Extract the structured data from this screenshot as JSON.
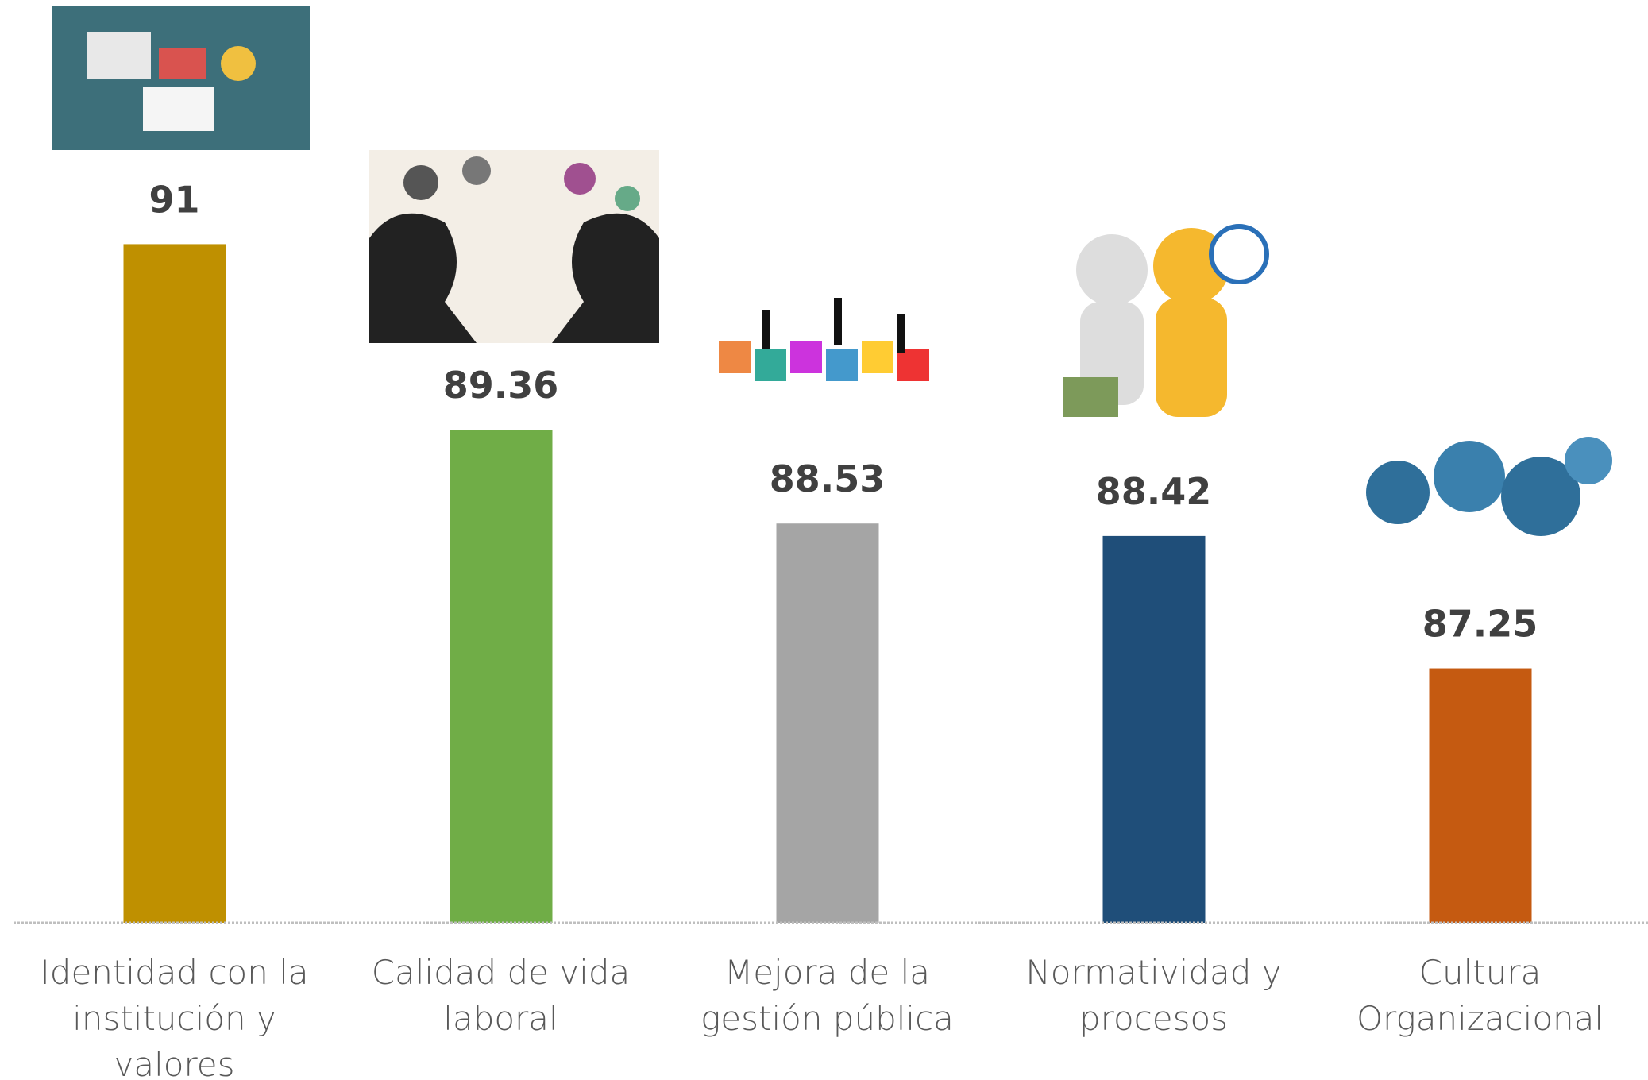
{
  "chart_data": {
    "type": "bar",
    "categories": [
      "Identidad con la institución y valores",
      "Calidad de vida laboral",
      "Mejora de la gestión pública",
      "Normatividad y procesos",
      "Cultura Organizacional"
    ],
    "values": [
      91,
      89.36,
      88.53,
      88.42,
      87.25
    ],
    "colors": [
      "#bf9000",
      "#70ad47",
      "#a5a5a5",
      "#1f4e79",
      "#c55a11"
    ],
    "ylim": [
      85,
      92
    ]
  }
}
